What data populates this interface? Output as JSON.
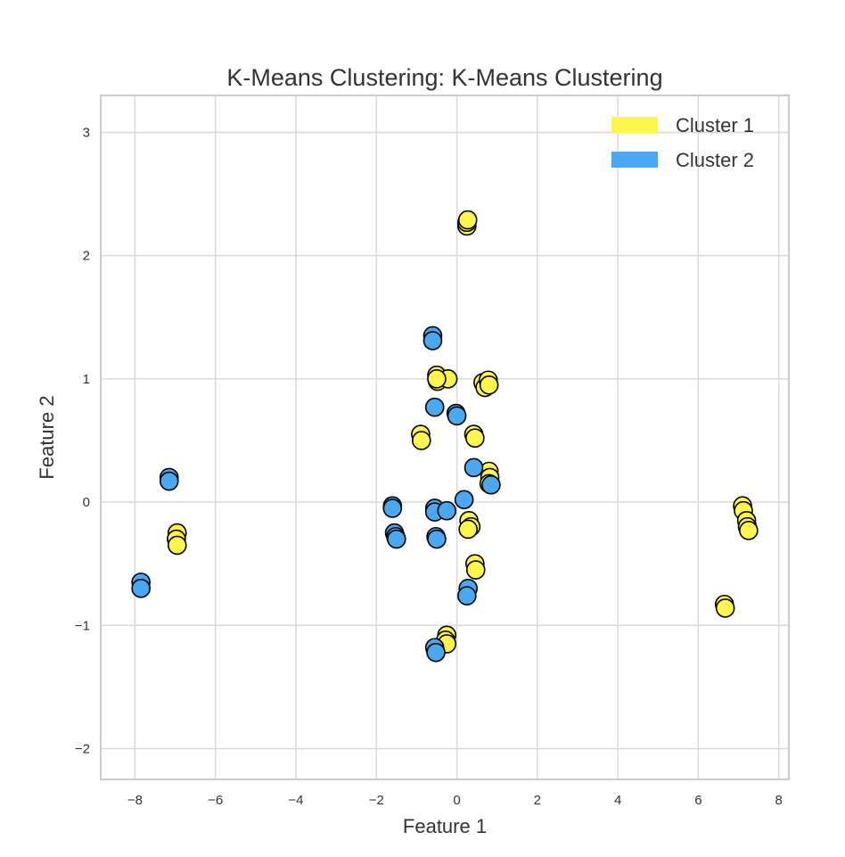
{
  "chart_data": {
    "type": "scatter",
    "title": "K-Means Clustering: K-Means Clustering",
    "xlabel": "Feature 1",
    "ylabel": "Feature 2",
    "xlim": [
      -8.85,
      8.25
    ],
    "ylim": [
      -2.25,
      3.3
    ],
    "xticks": [
      -8,
      -6,
      -4,
      -2,
      0,
      2,
      4,
      6,
      8
    ],
    "yticks": [
      -2,
      -1,
      0,
      1,
      2,
      3
    ],
    "grid": true,
    "legend_position": "top-right",
    "marker_edge_color": "#000000",
    "series": [
      {
        "name": "Cluster 1",
        "color": "#fff64d",
        "points": [
          [
            0.25,
            2.24
          ],
          [
            0.25,
            2.27
          ],
          [
            0.27,
            2.29
          ],
          [
            -0.5,
            1.03
          ],
          [
            -0.48,
            0.98
          ],
          [
            -0.22,
            1.0
          ],
          [
            -0.5,
            1.0
          ],
          [
            0.65,
            0.97
          ],
          [
            0.7,
            0.93
          ],
          [
            0.78,
            0.99
          ],
          [
            0.8,
            0.95
          ],
          [
            -0.9,
            0.55
          ],
          [
            -0.88,
            0.5
          ],
          [
            0.42,
            0.55
          ],
          [
            0.45,
            0.52
          ],
          [
            0.8,
            0.25
          ],
          [
            0.82,
            0.2
          ],
          [
            0.8,
            0.15
          ],
          [
            0.3,
            -0.15
          ],
          [
            0.35,
            -0.2
          ],
          [
            0.28,
            -0.22
          ],
          [
            0.45,
            -0.5
          ],
          [
            0.47,
            -0.55
          ],
          [
            -0.25,
            -1.08
          ],
          [
            -0.28,
            -1.12
          ],
          [
            -0.25,
            -1.15
          ],
          [
            -6.95,
            -0.25
          ],
          [
            -6.97,
            -0.3
          ],
          [
            -6.95,
            -0.35
          ],
          [
            7.1,
            -0.03
          ],
          [
            7.12,
            -0.07
          ],
          [
            7.2,
            -0.15
          ],
          [
            7.22,
            -0.2
          ],
          [
            7.25,
            -0.23
          ],
          [
            6.65,
            -0.83
          ],
          [
            6.67,
            -0.86
          ]
        ]
      },
      {
        "name": "Cluster 2",
        "color": "#4aa8f0",
        "points": [
          [
            -7.85,
            -0.65
          ],
          [
            -7.85,
            -0.7
          ],
          [
            -7.15,
            0.2
          ],
          [
            -7.15,
            0.17
          ],
          [
            -0.6,
            1.35
          ],
          [
            -0.6,
            1.31
          ],
          [
            -0.55,
            0.77
          ],
          [
            -0.02,
            0.72
          ],
          [
            0.0,
            0.7
          ],
          [
            0.42,
            0.28
          ],
          [
            0.18,
            0.02
          ],
          [
            0.85,
            0.14
          ],
          [
            -1.6,
            -0.03
          ],
          [
            -1.6,
            -0.05
          ],
          [
            -1.55,
            -0.25
          ],
          [
            -1.52,
            -0.28
          ],
          [
            -1.5,
            -0.3
          ],
          [
            -0.55,
            -0.05
          ],
          [
            -0.55,
            -0.08
          ],
          [
            -0.25,
            -0.07
          ],
          [
            -0.52,
            -0.28
          ],
          [
            -0.5,
            -0.3
          ],
          [
            0.28,
            -0.7
          ],
          [
            0.25,
            -0.76
          ],
          [
            -0.55,
            -1.18
          ],
          [
            -0.52,
            -1.22
          ]
        ]
      }
    ]
  }
}
